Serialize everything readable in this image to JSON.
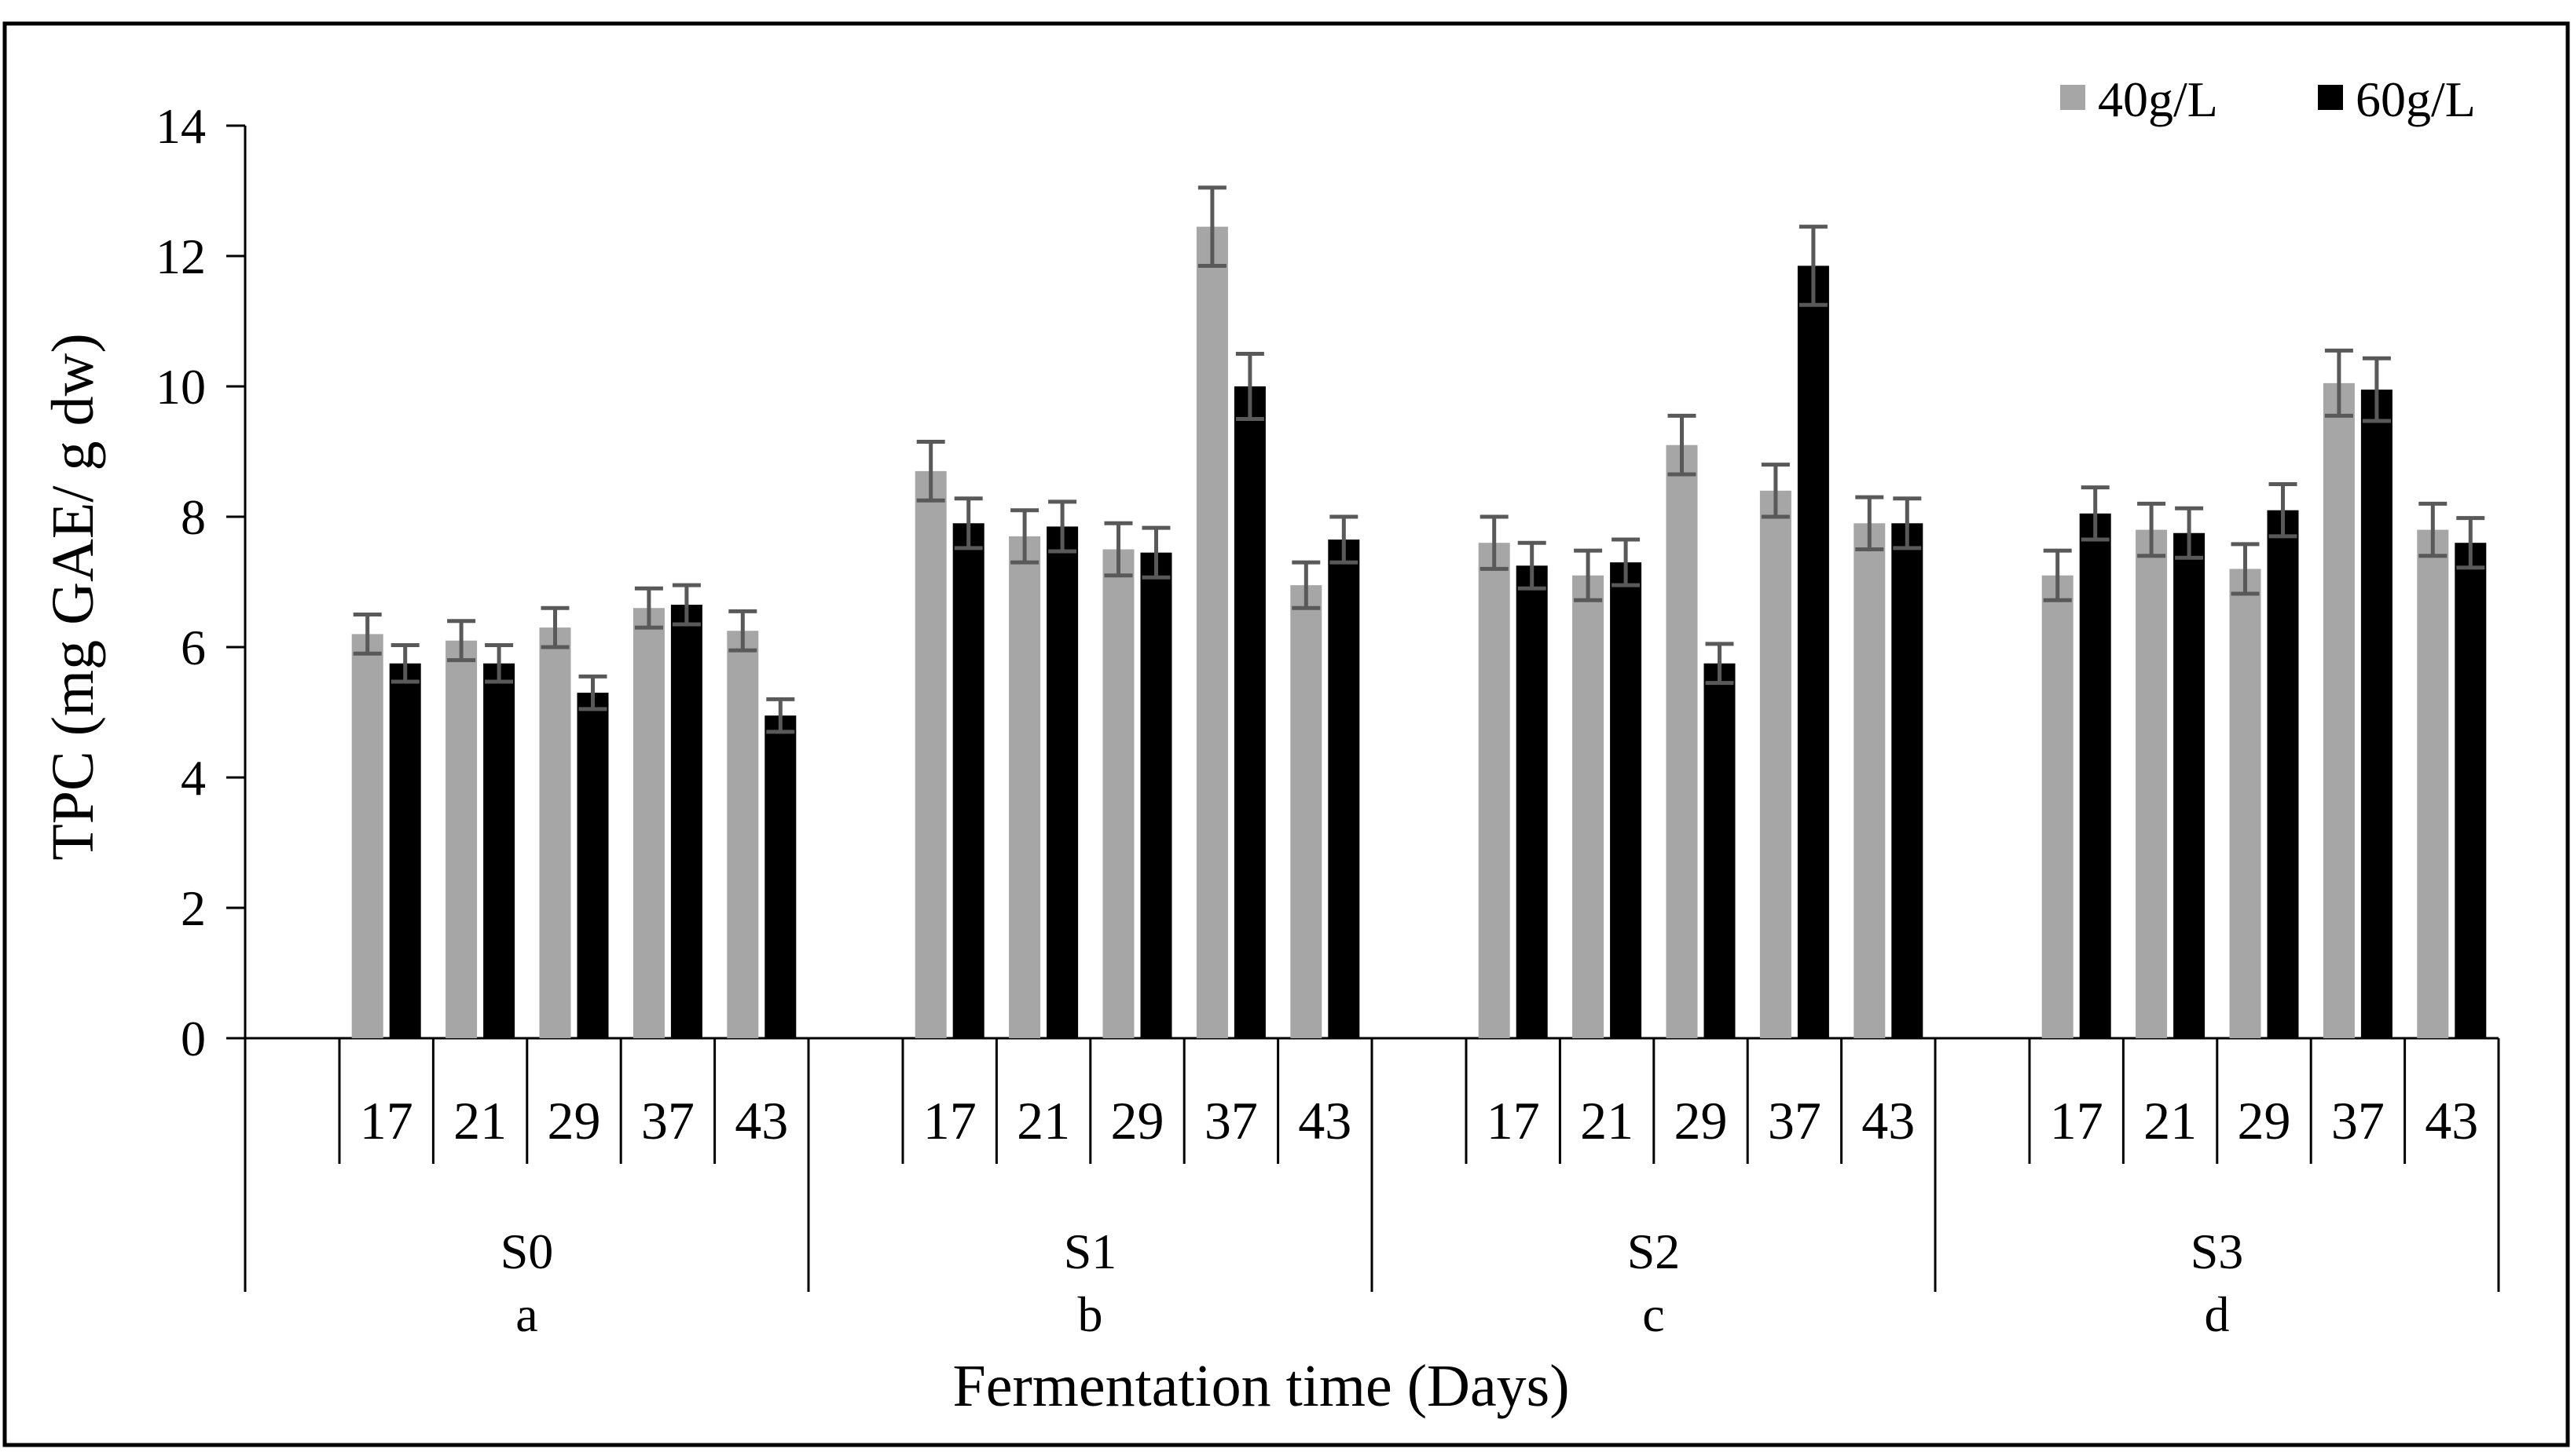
{
  "chart_data": {
    "type": "bar",
    "title": "",
    "xlabel": "Fermentation time (Days)",
    "ylabel": "TPC (mg GAE/ g dw)",
    "ylim": [
      0,
      14
    ],
    "yticks": [
      "0",
      "2",
      "4",
      "6",
      "8",
      "10",
      "12",
      "14"
    ],
    "grid": false,
    "legend_position": "top-right",
    "groups": [
      {
        "name": "S0",
        "letter": "a",
        "days": [
          "17",
          "21",
          "29",
          "37",
          "43"
        ]
      },
      {
        "name": "S1",
        "letter": "b",
        "days": [
          "17",
          "21",
          "29",
          "37",
          "43"
        ]
      },
      {
        "name": "S2",
        "letter": "c",
        "days": [
          "17",
          "21",
          "29",
          "37",
          "43"
        ]
      },
      {
        "name": "S3",
        "letter": "d",
        "days": [
          "17",
          "21",
          "29",
          "37",
          "43"
        ]
      }
    ],
    "series": [
      {
        "name": "40g/L",
        "color": "#a6a6a6",
        "values": [
          6.2,
          6.1,
          6.3,
          6.6,
          6.25,
          8.7,
          7.7,
          7.5,
          12.45,
          6.95,
          7.6,
          7.1,
          9.1,
          8.4,
          7.9,
          7.1,
          7.8,
          7.2,
          10.05,
          7.8
        ],
        "errors": [
          0.3,
          0.3,
          0.3,
          0.3,
          0.3,
          0.45,
          0.4,
          0.4,
          0.6,
          0.35,
          0.4,
          0.38,
          0.45,
          0.4,
          0.4,
          0.38,
          0.4,
          0.38,
          0.5,
          0.4
        ]
      },
      {
        "name": "60g/L",
        "color": "#000000",
        "values": [
          5.75,
          5.75,
          5.3,
          6.65,
          4.95,
          7.9,
          7.85,
          7.45,
          10.0,
          7.65,
          7.25,
          7.3,
          5.75,
          11.85,
          7.9,
          8.05,
          7.75,
          8.1,
          9.95,
          7.6
        ],
        "errors": [
          0.28,
          0.28,
          0.25,
          0.3,
          0.25,
          0.38,
          0.38,
          0.38,
          0.5,
          0.35,
          0.35,
          0.35,
          0.3,
          0.6,
          0.38,
          0.4,
          0.38,
          0.4,
          0.48,
          0.38
        ]
      }
    ],
    "error_bar_color": "#595959"
  }
}
